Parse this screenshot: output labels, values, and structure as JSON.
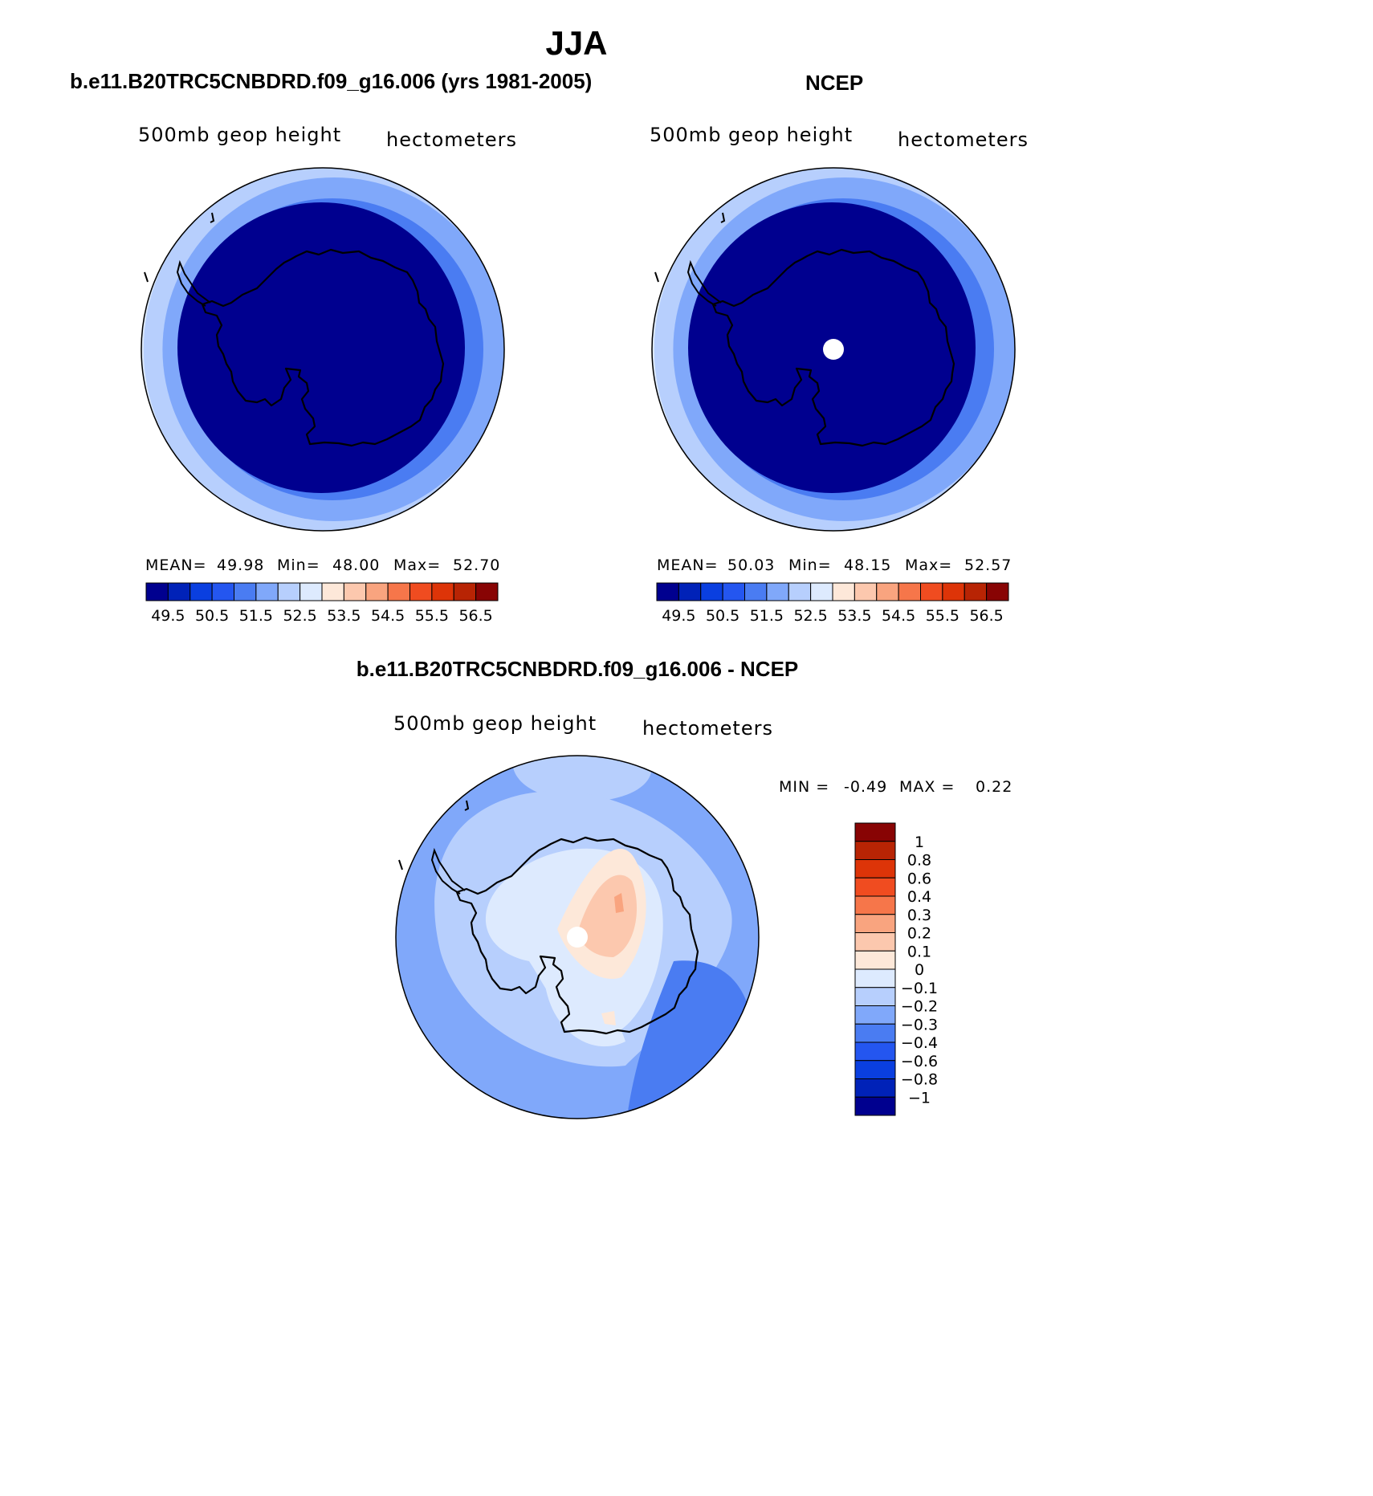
{
  "page": {
    "title": "JJA"
  },
  "panels": [
    {
      "header": "b.e11.B20TRC5CNBDRD.f09_g16.006 (yrs 1981-2005)",
      "left_label": "500mb  geop  height",
      "right_label": "hectometers",
      "stats": {
        "mean_label": "MEAN=",
        "mean": "49.98",
        "min_label": "Min=",
        "min": "48.00",
        "max_label": "Max=",
        "max": "52.70"
      },
      "rings": [
        52.7,
        52.2,
        51.7,
        51.2,
        50.7,
        50.2,
        49.7,
        49.2
      ],
      "pole_hole": false
    },
    {
      "header": "NCEP",
      "left_label": "500mb  geop  height",
      "right_label": "hectometers",
      "stats": {
        "mean_label": "MEAN=",
        "mean": "50.03",
        "min_label": "Min=",
        "min": "48.15",
        "max_label": "Max=",
        "max": "52.57"
      },
      "rings": [
        52.57,
        52.2,
        51.7,
        51.2,
        50.7,
        50.2,
        49.7,
        49.2
      ],
      "pole_hole": true
    },
    {
      "header": "b.e11.B20TRC5CNBDRD.f09_g16.006 - NCEP",
      "left_label": "500mb  geop  height",
      "right_label": "hectometers",
      "stats": {
        "min_label": "MIN =",
        "min": "-0.49",
        "max_label": "MAX =",
        "max": "0.22"
      },
      "pole_hole": true
    }
  ],
  "levels_abs": [
    49.5,
    50.0,
    50.5,
    51.0,
    51.5,
    52.0,
    52.5,
    53.0,
    53.5,
    54.0,
    54.5,
    55.0,
    55.5,
    56.0,
    56.5
  ],
  "labelbar_abs_ticks": [
    "49.5",
    "50.5",
    "51.5",
    "52.5",
    "53.5",
    "54.5",
    "55.5",
    "56.5"
  ],
  "colors_abs": [
    "#00008f",
    "#0022b8",
    "#0a3fe0",
    "#2456f0",
    "#4a7cf2",
    "#80a8fa",
    "#b7cffd",
    "#ddeafe",
    "#fde8d9",
    "#fcc8ae",
    "#f9a47f",
    "#f6764a",
    "#f04c20",
    "#dd3408",
    "#b82404",
    "#880404"
  ],
  "levels_diff": [
    "1",
    "0.8",
    "0.6",
    "0.4",
    "0.3",
    "0.2",
    "0.1",
    "0",
    "−0.1",
    "−0.2",
    "−0.3",
    "−0.4",
    "−0.6",
    "−0.8",
    "−1"
  ],
  "colors_diff": [
    "#880404",
    "#b82404",
    "#dd3408",
    "#f04c20",
    "#f6764a",
    "#f9a47f",
    "#fcc8ae",
    "#fde8d9",
    "#ddeafe",
    "#b7cffd",
    "#80a8fa",
    "#4a7cf2",
    "#2456f0",
    "#0a3fe0",
    "#0022b8",
    "#00008f"
  ],
  "diff_field": {
    "background": -0.25,
    "regions": [
      {
        "name": "indian-ocean-sector",
        "value": -0.15
      },
      {
        "name": "atlantic-sector",
        "value": -0.15
      },
      {
        "name": "pacific-sector",
        "value": -0.35
      },
      {
        "name": "east-antarctica",
        "value": -0.05
      },
      {
        "name": "east-antarctica-core",
        "value": 0.05
      },
      {
        "name": "east-antarctica-max",
        "value": 0.15
      },
      {
        "name": "east-antarctica-peak",
        "value": 0.22
      },
      {
        "name": "ross-sea",
        "value": -0.05
      },
      {
        "name": "ross-ice-shelf",
        "value": 0.05
      }
    ]
  }
}
